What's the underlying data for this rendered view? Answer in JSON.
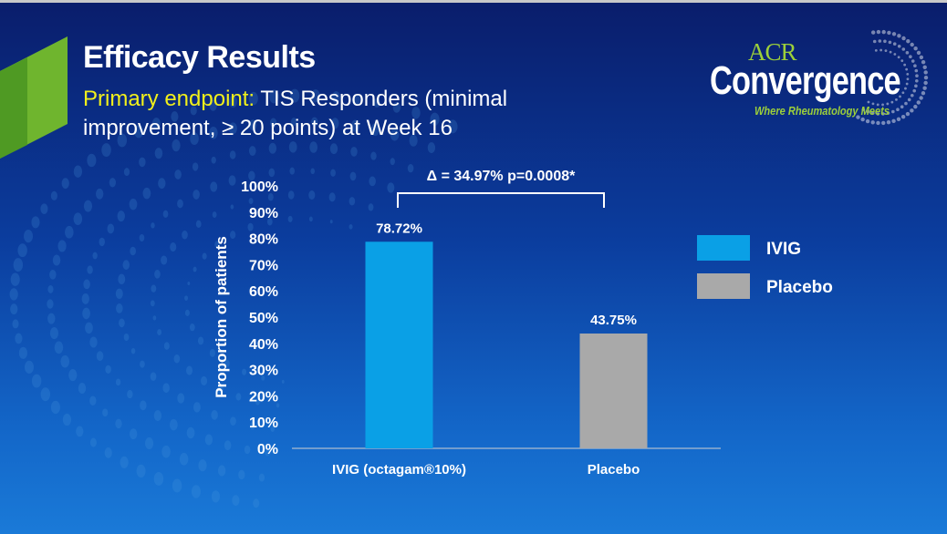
{
  "slide": {
    "title": "Efficacy Results",
    "subtitle_highlight": "Primary endpoint:",
    "subtitle_text_1": " TIS Responders (minimal",
    "subtitle_text_2": "improvement, ≥ 20 points) at Week 16"
  },
  "logo": {
    "acr": "ACR",
    "convergence": "Convergence",
    "tagline": "Where Rheumatology Meets"
  },
  "colors": {
    "ivig": "#0aa0e6",
    "placebo": "#a9a9a9",
    "highlight": "#f1f01b",
    "brand_green": "#9ccf3a"
  },
  "chart_data": {
    "type": "bar",
    "ylabel": "Proportion of patients",
    "ylim": [
      0,
      100
    ],
    "yticks": [
      "0%",
      "10%",
      "20%",
      "30%",
      "40%",
      "50%",
      "60%",
      "70%",
      "80%",
      "90%",
      "100%"
    ],
    "categories": [
      "IVIG (octagam®10%)",
      "Placebo"
    ],
    "values": [
      78.72,
      43.75
    ],
    "value_labels": [
      "78.72%",
      "43.75%"
    ],
    "bar_colors": [
      "#0aa0e6",
      "#a9a9a9"
    ],
    "legend": [
      {
        "name": "IVIG",
        "color": "#0aa0e6"
      },
      {
        "name": "Placebo",
        "color": "#a9a9a9"
      }
    ],
    "annotation": "Δ = 34.97% p=0.0008*",
    "grid": false
  }
}
